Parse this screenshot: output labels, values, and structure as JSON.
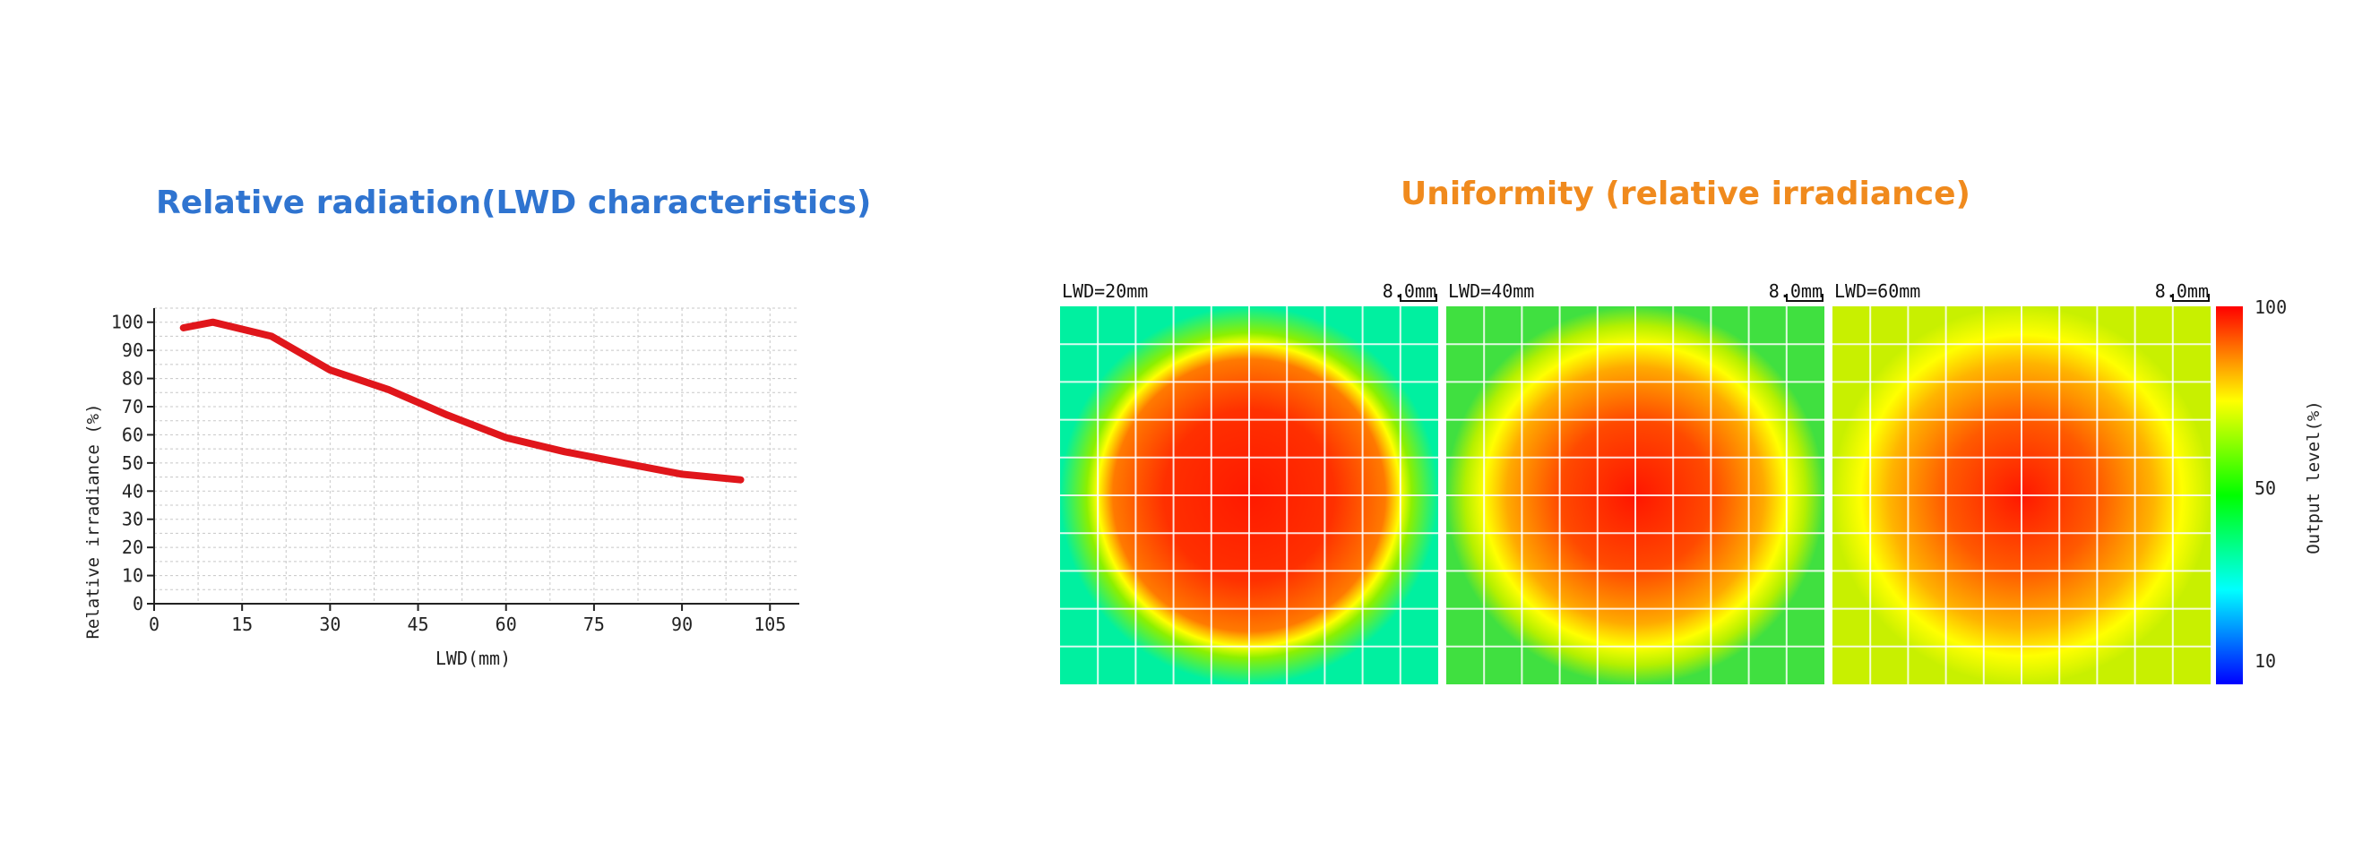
{
  "left_title": "Relative radiation(LWD characteristics)",
  "right_title": "Uniformity (relative irradiance)",
  "colors": {
    "left_title": "#2f74d0",
    "right_title": "#f08a1d",
    "curve": "#e0161b"
  },
  "chart_data": [
    {
      "type": "line",
      "title": "Relative radiation(LWD characteristics)",
      "xlabel": "LWD(mm)",
      "ylabel": "Relative irradiance (%)",
      "xlim": [
        0,
        110
      ],
      "ylim": [
        0,
        105
      ],
      "xticks": [
        0,
        15,
        30,
        45,
        60,
        75,
        90,
        105
      ],
      "yticks": [
        0,
        10,
        20,
        30,
        40,
        50,
        60,
        70,
        80,
        90,
        100
      ],
      "grid": true,
      "series": [
        {
          "x": [
            5,
            10,
            20,
            30,
            40,
            50,
            60,
            70,
            80,
            90,
            100
          ],
          "y": [
            98,
            100,
            95,
            83,
            76,
            67,
            59,
            54,
            50,
            46,
            44
          ]
        }
      ]
    },
    {
      "type": "heatmap",
      "title": "Uniformity (relative irradiance)",
      "panels": [
        {
          "label": "LWD=20mm",
          "scale_label": "8.0mm"
        },
        {
          "label": "LWD=40mm",
          "scale_label": "8.0mm"
        },
        {
          "label": "LWD=60mm",
          "scale_label": "8.0mm"
        }
      ],
      "colorbar": {
        "label": "Output level(%)",
        "ticks": [
          100,
          50,
          10
        ]
      }
    }
  ]
}
